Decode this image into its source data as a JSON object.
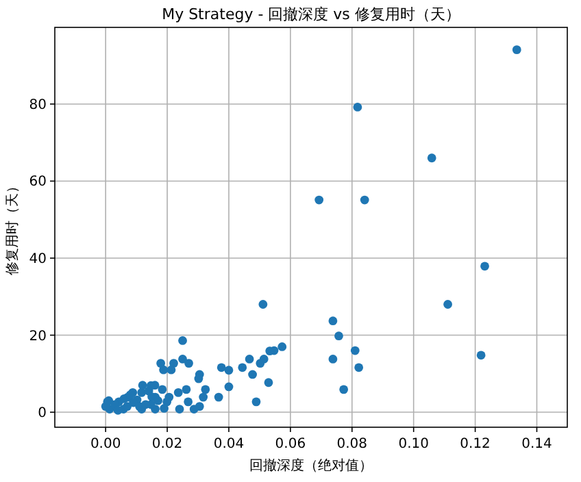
{
  "chart_data": {
    "type": "scatter",
    "title": "My Strategy - 回撤深度 vs 修复用时（天）",
    "xlabel": "回撤深度（绝对值）",
    "ylabel": "修复用时（天）",
    "color": "#1f77b4",
    "marker": "circle",
    "grid": true,
    "x": [
      0.1335,
      0.0818,
      0.1059,
      0.0693,
      0.0841,
      0.1231,
      0.1111,
      0.0738,
      0.0757,
      0.0573,
      0.0547,
      0.081,
      0.0738,
      0.0822,
      0.0773,
      0.1219,
      0.0511,
      0.0533,
      0.0514,
      0.0502,
      0.0467,
      0.0444,
      0.0477,
      0.0529,
      0.0489,
      0.0376,
      0.04,
      0.04,
      0.0367,
      0.0324,
      0.0317,
      0.0305,
      0.0305,
      0.0302,
      0.027,
      0.025,
      0.025,
      0.0221,
      0.0179,
      0.0188,
      0.0213,
      0.0262,
      0.024,
      0.0287,
      0.0268,
      0.0236,
      0.0206,
      0.0184,
      0.0147,
      0.0161,
      0.0117,
      0.0088,
      0.0072,
      0.0102,
      0.0043,
      0.0006,
      0.0013,
      0.0058,
      0.0117,
      0.0161,
      0.0147,
      0.0199,
      0.003,
      0.004,
      0.007,
      0.009,
      0.011,
      0.013,
      0.015,
      0.017,
      0.019,
      0.006,
      0.008,
      0.014,
      0.012,
      0.016,
      0.0,
      0.001
    ],
    "values": [
      94.1,
      79.2,
      66.0,
      55.1,
      55.1,
      37.9,
      28.0,
      23.7,
      19.8,
      17.0,
      16.0,
      16.0,
      13.8,
      11.6,
      5.9,
      14.8,
      28.0,
      15.9,
      13.8,
      12.7,
      13.8,
      11.6,
      9.8,
      7.7,
      2.7,
      11.6,
      10.9,
      6.6,
      3.9,
      5.9,
      3.9,
      1.5,
      9.8,
      8.7,
      12.7,
      18.6,
      13.8,
      12.7,
      12.7,
      11.0,
      11.0,
      5.9,
      0.8,
      0.8,
      2.7,
      5.1,
      3.9,
      5.9,
      6.9,
      3.9,
      5.1,
      5.1,
      3.9,
      3.2,
      2.7,
      2.7,
      0.8,
      0.8,
      0.8,
      0.8,
      2.0,
      2.7,
      2.0,
      0.5,
      1.5,
      2.5,
      1.5,
      2.0,
      4.0,
      3.0,
      1.0,
      3.5,
      4.5,
      5.5,
      7.0,
      7.0,
      1.5,
      3.0
    ],
    "xlim": [
      -0.0165,
      0.1499
    ],
    "ylim": [
      -3.9,
      99.9
    ],
    "xticks": [
      {
        "value": 0,
        "label": "0.00"
      },
      0.02,
      0.04,
      0.06,
      0.08,
      {
        "value": 0.1,
        "label": "0.10"
      },
      0.12,
      0.14
    ],
    "yticks": [
      0,
      20,
      40,
      60,
      80
    ]
  }
}
